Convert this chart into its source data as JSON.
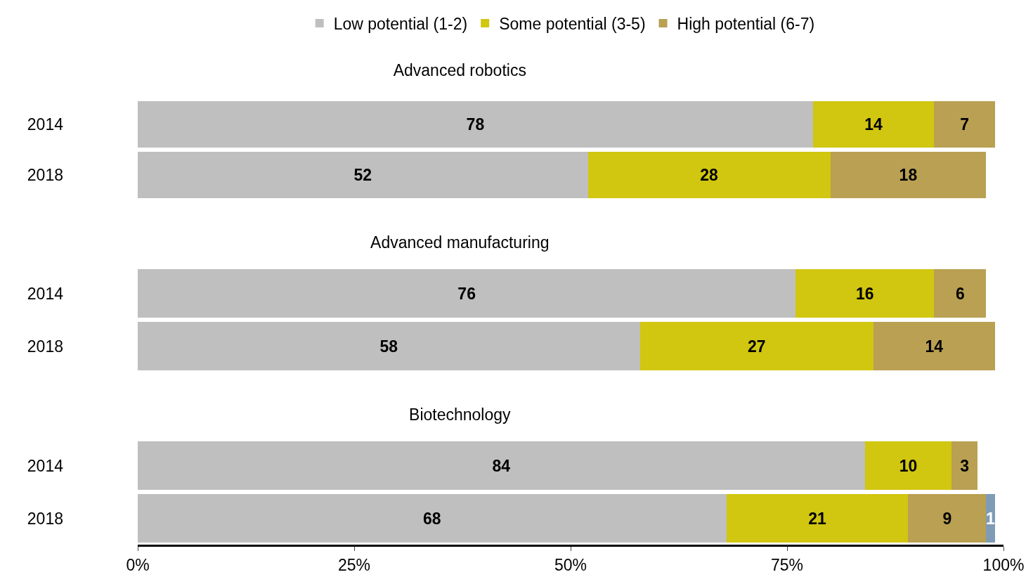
{
  "chart_data": [
    {
      "type": "bar",
      "title": "Advanced robotics",
      "categories": [
        "2014",
        "2018"
      ],
      "orientation": "horizontal",
      "stacked": true,
      "data_labels": true,
      "legend": "top",
      "grid": false,
      "tick_labels": "y",
      "xlim": [
        0,
        100
      ],
      "series": [
        {
          "name": "Low potential (1-2)",
          "color": "#bfbfbf",
          "values": [
            78,
            52
          ]
        },
        {
          "name": "Some potential (3-5)",
          "color": "#d1c610",
          "values": [
            14,
            28
          ]
        },
        {
          "name": "High potential (6-7)",
          "color": "#b9a052",
          "values": [
            7,
            18
          ]
        }
      ]
    },
    {
      "type": "bar",
      "title": "Advanced manufacturing",
      "categories": [
        "2014",
        "2018"
      ],
      "orientation": "horizontal",
      "stacked": true,
      "data_labels": true,
      "legend": false,
      "grid": false,
      "tick_labels": "y",
      "xlim": [
        0,
        100
      ],
      "series": [
        {
          "color": "#bfbfbf",
          "values": [
            76,
            58
          ]
        },
        {
          "color": "#d1c610",
          "values": [
            16,
            27
          ]
        },
        {
          "color": "#b9a052",
          "values": [
            6,
            14
          ]
        }
      ]
    },
    {
      "type": "bar",
      "title": "Biotechnology",
      "categories": [
        "2014",
        "2018"
      ],
      "orientation": "horizontal",
      "stacked": true,
      "data_labels": true,
      "legend": false,
      "grid": false,
      "xlim": [
        0,
        100
      ],
      "xticks": [
        {
          "value": 0,
          "label": "0%"
        },
        {
          "value": 25,
          "label": "25%"
        },
        {
          "value": 50,
          "label": "50%"
        },
        {
          "value": 75,
          "label": "75%"
        },
        {
          "value": 100,
          "label": "100%"
        }
      ],
      "series": [
        {
          "color": "#bfbfbf",
          "values": [
            84,
            68
          ]
        },
        {
          "color": "#d1c610",
          "values": [
            10,
            21
          ]
        },
        {
          "color": "#b9a052",
          "values": [
            3,
            9
          ]
        },
        {
          "color": "#7f9bb5",
          "values": [
            null,
            1
          ]
        }
      ]
    }
  ]
}
